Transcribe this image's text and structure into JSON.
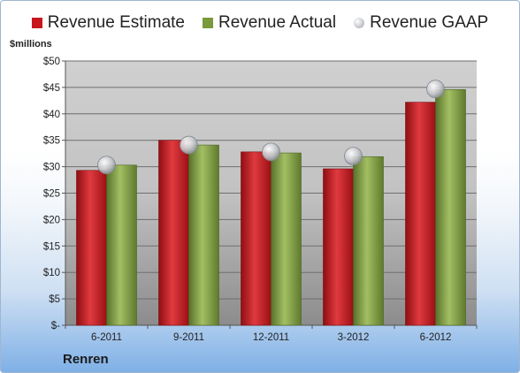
{
  "chart_data": {
    "type": "bar",
    "unit_label": "$millions",
    "company": "Renren",
    "categories": [
      "6-2011",
      "9-2011",
      "12-2011",
      "3-2012",
      "6-2012"
    ],
    "series": [
      {
        "name": "Revenue Estimate",
        "kind": "bar",
        "color": "#c8161e",
        "values": [
          29.3,
          35.0,
          32.8,
          29.6,
          42.2
        ]
      },
      {
        "name": "Revenue Actual",
        "kind": "bar",
        "color": "#7a9a3c",
        "values": [
          30.3,
          34.1,
          32.6,
          31.9,
          44.6
        ]
      },
      {
        "name": "Revenue GAAP",
        "kind": "marker",
        "color": "#b9bcc2",
        "values": [
          30.3,
          34.1,
          32.8,
          32.0,
          44.7
        ]
      }
    ],
    "ylim": [
      0,
      50
    ],
    "yticks": [
      "$-",
      "$5",
      "$10",
      "$15",
      "$20",
      "$25",
      "$30",
      "$35",
      "$40",
      "$45",
      "$50"
    ],
    "grid": true,
    "legend_position": "top"
  }
}
